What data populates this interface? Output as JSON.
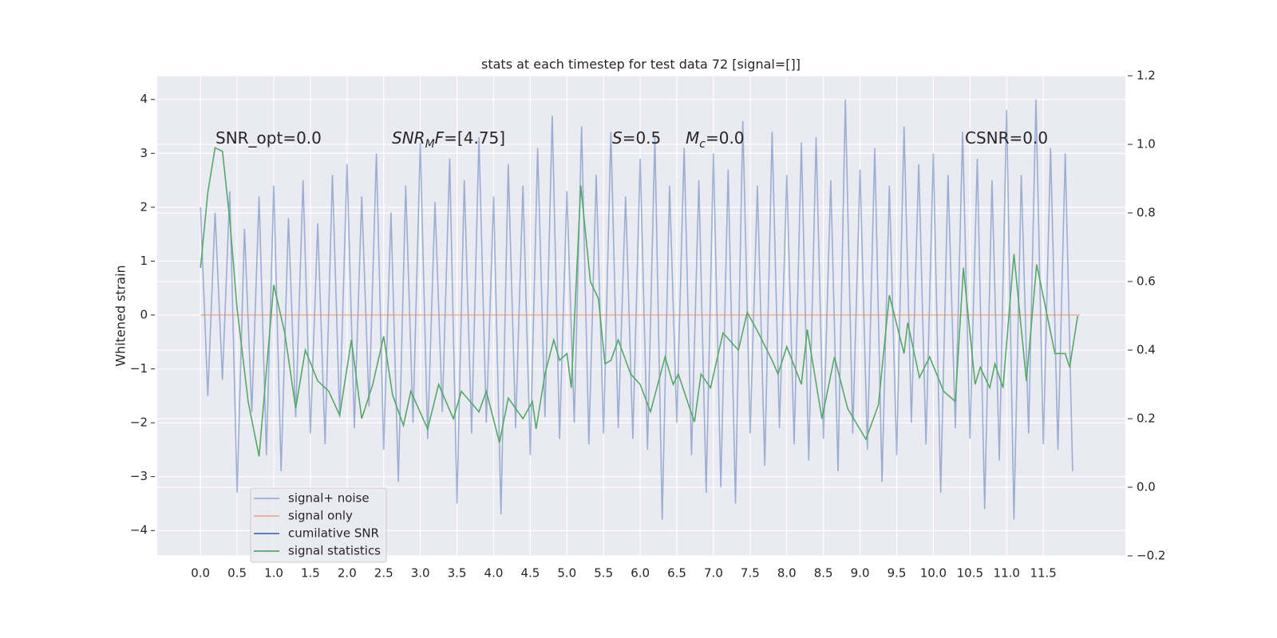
{
  "chart_data": {
    "type": "line",
    "title": "stats at each timestep for test data 72 [signal=[]]",
    "ylabel": "Whitened strain",
    "xlim": [
      -0.59,
      12.62
    ],
    "ylim": [
      -4.47,
      4.44
    ],
    "y2lim": [
      -0.2,
      1.2
    ],
    "grid": true,
    "background": "#eaeaf2",
    "legend": "lower left",
    "xticks": [
      {
        "value": 0,
        "label": "0.0"
      },
      {
        "value": 0.5,
        "label": "0.5"
      },
      {
        "value": 1,
        "label": "1.0"
      },
      {
        "value": 1.5,
        "label": "1.5"
      },
      {
        "value": 2,
        "label": "2.0"
      },
      {
        "value": 2.5,
        "label": "2.5"
      },
      {
        "value": 3,
        "label": "3.0"
      },
      {
        "value": 3.5,
        "label": "3.5"
      },
      {
        "value": 4,
        "label": "4.0"
      },
      {
        "value": 4.5,
        "label": "4.5"
      },
      {
        "value": 5,
        "label": "5.0"
      },
      {
        "value": 5.5,
        "label": "5.5"
      },
      {
        "value": 6,
        "label": "6.0"
      },
      {
        "value": 6.5,
        "label": "6.5"
      },
      {
        "value": 7,
        "label": "7.0"
      },
      {
        "value": 7.5,
        "label": "7.5"
      },
      {
        "value": 8,
        "label": "8.0"
      },
      {
        "value": 8.5,
        "label": "8.5"
      },
      {
        "value": 9,
        "label": "9.0"
      },
      {
        "value": 9.5,
        "label": "9.5"
      },
      {
        "value": 10,
        "label": "10.0"
      },
      {
        "value": 10.5,
        "label": "10.5"
      },
      {
        "value": 11,
        "label": "11.0"
      },
      {
        "value": 11.5,
        "label": "11.5"
      }
    ],
    "yticks": [
      {
        "value": -4,
        "label": "−4"
      },
      {
        "value": -3,
        "label": "−3"
      },
      {
        "value": -2,
        "label": "−2"
      },
      {
        "value": -1,
        "label": "−1"
      },
      0,
      1,
      2,
      3,
      4
    ],
    "y2ticks": [
      {
        "value": -0.2,
        "label": "−0.2"
      },
      {
        "value": 0,
        "label": "0.0"
      },
      0.2,
      0.4,
      0.6,
      0.8,
      {
        "value": 1,
        "label": "1.0"
      },
      1.2
    ],
    "annotations": [
      [
        {
          "text": "SNR_opt=0.0"
        }
      ],
      [
        {
          "text": "SNR",
          "italic": true
        },
        {
          "text": "M",
          "italic": true,
          "sub": true
        },
        {
          "text": "F",
          "italic": true
        },
        {
          "text": "=[4.75]"
        }
      ],
      [
        {
          "text": "S",
          "italic": true
        },
        {
          "text": "=0.5"
        }
      ],
      [
        {
          "text": "M",
          "italic": true
        },
        {
          "text": "c",
          "italic": true,
          "sub": true
        },
        {
          "text": "=0.0"
        }
      ],
      [
        {
          "text": "CSNR=0.0"
        }
      ]
    ],
    "series": [
      {
        "name": "signal+ noise",
        "color": "#4c72b0",
        "alpha": 0.5,
        "x": [
          0.0,
          0.1,
          0.2,
          0.3,
          0.4,
          0.5,
          0.6,
          0.7,
          0.8,
          0.9,
          1.0,
          1.1,
          1.2,
          1.3,
          1.4,
          1.5,
          1.6,
          1.7,
          1.8,
          1.9,
          2.0,
          2.1,
          2.2,
          2.3,
          2.4,
          2.5,
          2.6,
          2.7,
          2.8,
          2.9,
          3.0,
          3.1,
          3.2,
          3.3,
          3.4,
          3.5,
          3.6,
          3.7,
          3.8,
          3.9,
          4.0,
          4.1,
          4.2,
          4.3,
          4.4,
          4.5,
          4.6,
          4.7,
          4.8,
          4.9,
          5.0,
          5.1,
          5.2,
          5.3,
          5.4,
          5.5,
          5.6,
          5.7,
          5.8,
          5.9,
          6.0,
          6.1,
          6.2,
          6.3,
          6.4,
          6.5,
          6.6,
          6.7,
          6.8,
          6.9,
          7.0,
          7.1,
          7.2,
          7.3,
          7.4,
          7.5,
          7.6,
          7.7,
          7.8,
          7.9,
          8.0,
          8.1,
          8.2,
          8.3,
          8.4,
          8.5,
          8.6,
          8.7,
          8.8,
          8.9,
          9.0,
          9.1,
          9.2,
          9.3,
          9.4,
          9.5,
          9.6,
          9.7,
          9.8,
          9.9,
          10.0,
          10.1,
          10.2,
          10.3,
          10.4,
          10.5,
          10.6,
          10.7,
          10.8,
          10.9,
          11.0,
          11.1,
          11.2,
          11.3,
          11.4,
          11.5,
          11.6,
          11.7,
          11.8,
          11.9
        ],
        "values": [
          2.0,
          -1.5,
          1.9,
          -1.2,
          2.3,
          -3.3,
          1.6,
          -1.8,
          2.2,
          -2.6,
          2.4,
          -2.9,
          1.8,
          -1.9,
          2.5,
          -2.2,
          1.7,
          -2.4,
          2.6,
          -1.9,
          2.8,
          -2.1,
          2.2,
          -1.7,
          3.0,
          -2.5,
          1.9,
          -3.1,
          2.4,
          -2.0,
          3.2,
          -2.3,
          2.1,
          -1.8,
          2.9,
          -3.5,
          2.5,
          -2.2,
          3.3,
          -2.0,
          2.2,
          -3.7,
          2.8,
          -2.1,
          2.4,
          -2.6,
          3.1,
          -1.9,
          3.7,
          -2.3,
          2.3,
          -2.0,
          3.5,
          -2.4,
          2.6,
          -2.2,
          3.4,
          -2.1,
          2.2,
          -2.3,
          2.9,
          -2.5,
          3.3,
          -3.8,
          2.4,
          -2.0,
          3.1,
          -2.6,
          2.5,
          -3.3,
          3.0,
          -3.2,
          2.7,
          -3.5,
          3.6,
          -2.2,
          2.4,
          -2.8,
          3.4,
          -2.1,
          2.6,
          -2.4,
          3.2,
          -2.7,
          3.3,
          -2.3,
          2.5,
          -2.9,
          4.0,
          -2.2,
          2.7,
          -2.5,
          3.1,
          -3.1,
          2.4,
          -2.6,
          3.5,
          -2.0,
          2.8,
          -2.4,
          3.0,
          -3.3,
          2.6,
          -2.1,
          3.4,
          -2.3,
          2.9,
          -3.6,
          2.5,
          -2.7,
          3.8,
          -3.8,
          2.6,
          -2.2,
          4.0,
          -2.4,
          3.1,
          -2.5,
          3.0,
          -2.9
        ]
      },
      {
        "name": "signal only",
        "color": "#dd8452",
        "alpha": 0.6,
        "x": [
          0.0,
          12.0
        ],
        "values": [
          0,
          0
        ]
      },
      {
        "name": "cumilative SNR",
        "color": "#4c72b0",
        "alpha": 1,
        "x": [],
        "values": []
      },
      {
        "name": "signal statistics",
        "color": "#55a868",
        "alpha": 1,
        "axis": "y2",
        "x": [
          0,
          0.1,
          0.2,
          0.3,
          0.4,
          0.5,
          0.65,
          0.8,
          1.0,
          1.15,
          1.3,
          1.43,
          1.6,
          1.75,
          1.9,
          2.06,
          2.2,
          2.35,
          2.5,
          2.62,
          2.77,
          2.87,
          3.1,
          3.25,
          3.45,
          3.56,
          3.8,
          3.9,
          4.08,
          4.2,
          4.4,
          4.53,
          4.58,
          4.7,
          4.82,
          4.9,
          5.0,
          5.06,
          5.19,
          5.32,
          5.43,
          5.52,
          5.6,
          5.7,
          5.87,
          6.0,
          6.14,
          6.34,
          6.45,
          6.52,
          6.74,
          6.83,
          6.96,
          7.13,
          7.34,
          7.46,
          7.59,
          7.8,
          7.88,
          8.0,
          8.2,
          8.28,
          8.48,
          8.65,
          8.83,
          9.08,
          9.25,
          9.4,
          9.6,
          9.65,
          9.81,
          9.95,
          10.14,
          10.3,
          10.41,
          10.57,
          10.64,
          10.77,
          10.84,
          10.95,
          11.1,
          11.27,
          11.41,
          11.66,
          11.8,
          11.86,
          11.97
        ],
        "values": [
          0.64,
          0.86,
          0.99,
          0.98,
          0.78,
          0.52,
          0.25,
          0.09,
          0.59,
          0.45,
          0.23,
          0.4,
          0.31,
          0.28,
          0.21,
          0.43,
          0.2,
          0.3,
          0.44,
          0.27,
          0.18,
          0.28,
          0.17,
          0.3,
          0.2,
          0.28,
          0.22,
          0.28,
          0.13,
          0.26,
          0.2,
          0.25,
          0.17,
          0.33,
          0.43,
          0.37,
          0.39,
          0.29,
          0.88,
          0.6,
          0.55,
          0.36,
          0.37,
          0.43,
          0.33,
          0.3,
          0.22,
          0.38,
          0.3,
          0.33,
          0.19,
          0.33,
          0.29,
          0.45,
          0.4,
          0.51,
          0.46,
          0.37,
          0.33,
          0.41,
          0.3,
          0.46,
          0.2,
          0.38,
          0.23,
          0.14,
          0.24,
          0.56,
          0.39,
          0.48,
          0.32,
          0.38,
          0.28,
          0.25,
          0.64,
          0.3,
          0.35,
          0.29,
          0.36,
          0.29,
          0.68,
          0.31,
          0.65,
          0.39,
          0.39,
          0.35,
          0.5
        ]
      }
    ]
  }
}
